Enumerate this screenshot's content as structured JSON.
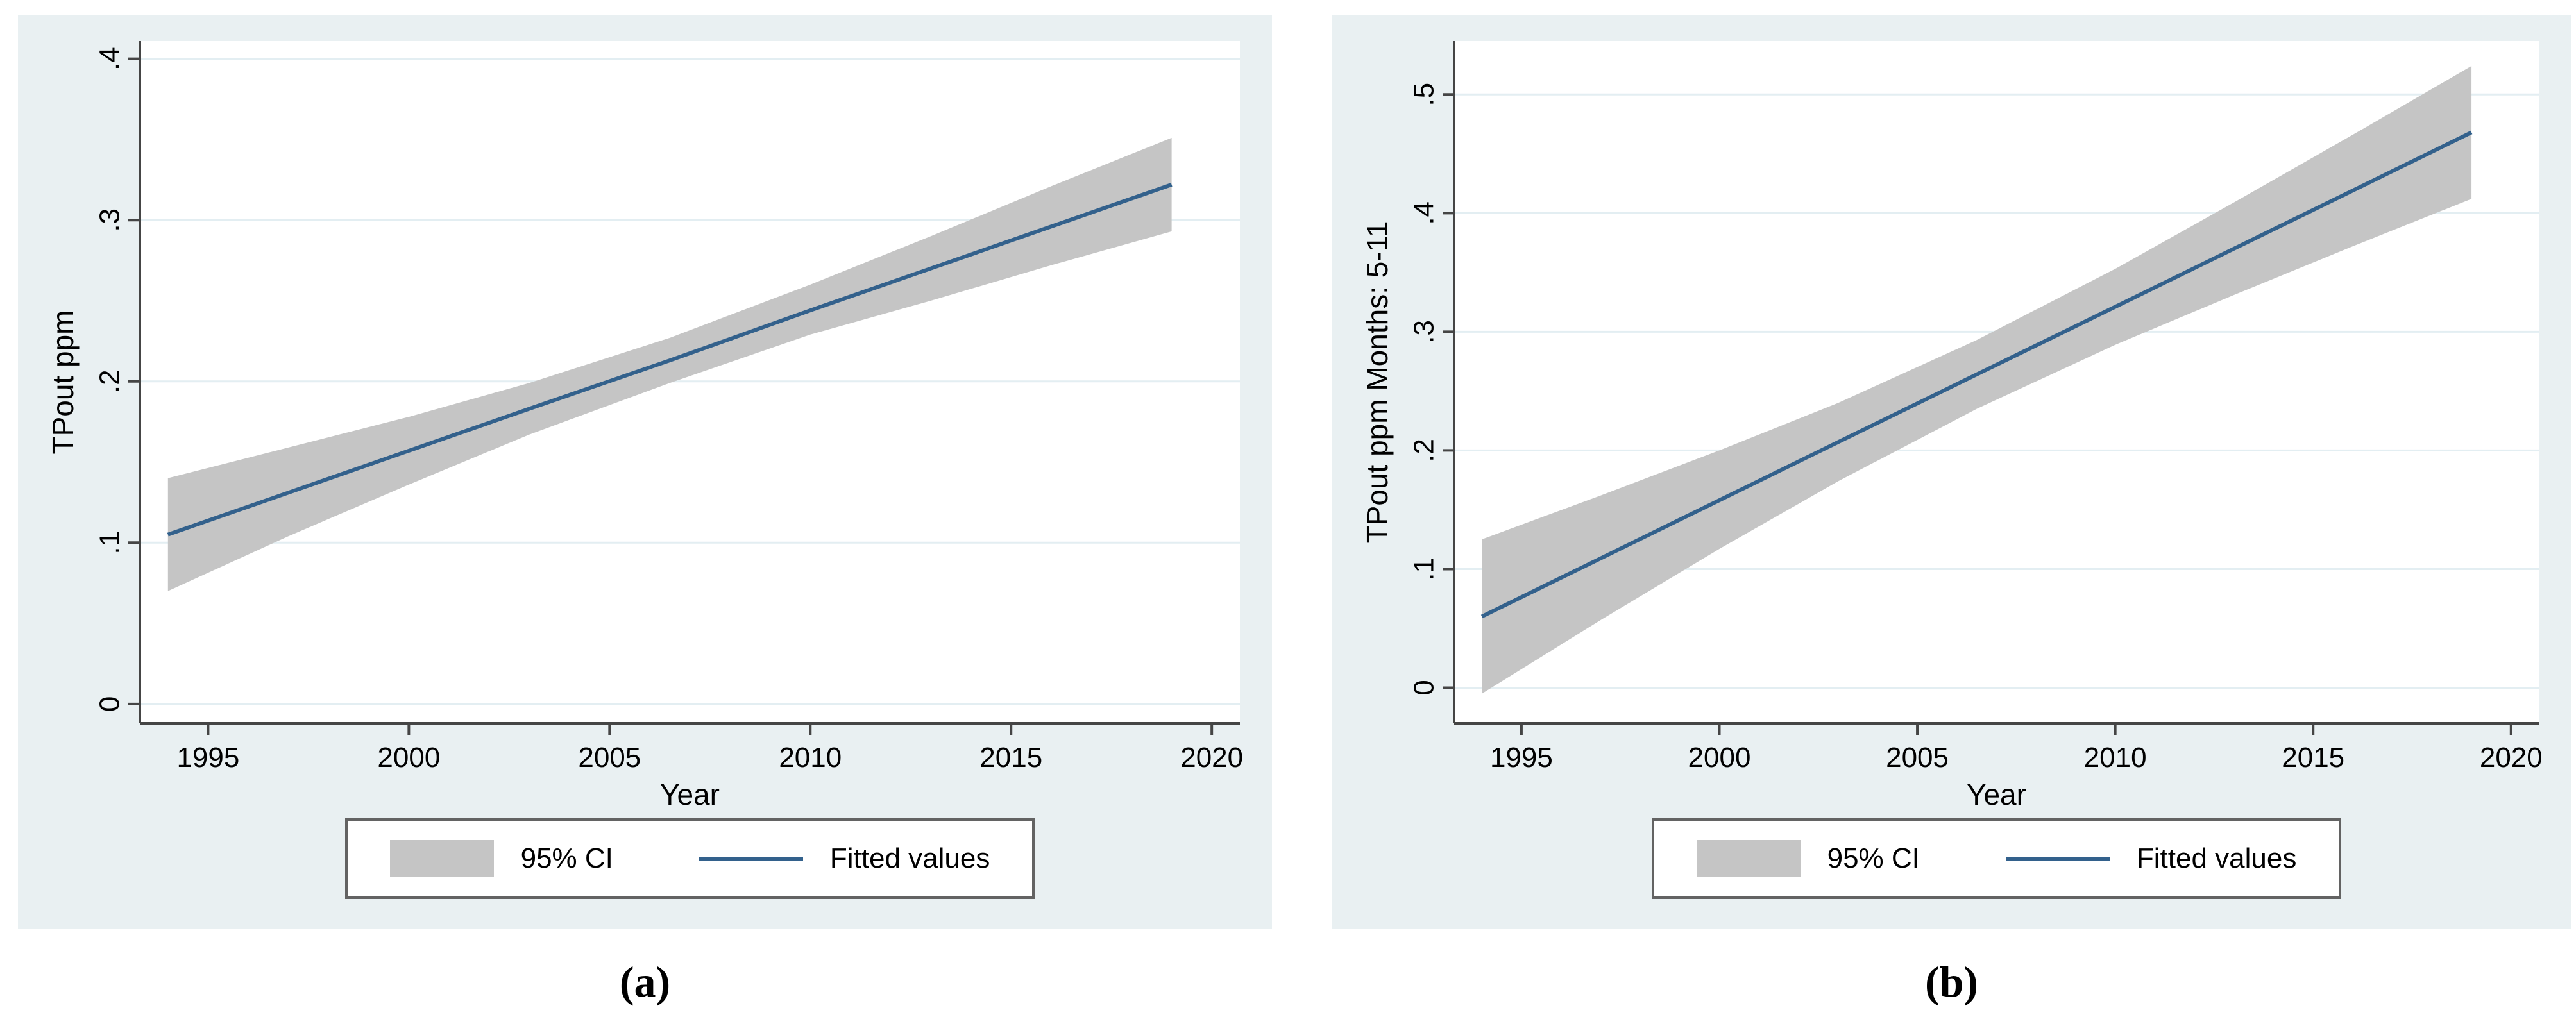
{
  "figure": {
    "captions": [
      {
        "text": "(a)"
      },
      {
        "text": "(b)"
      }
    ]
  },
  "chart_data": [
    {
      "type": "line",
      "title": "",
      "xlabel": "Year",
      "ylabel": "TPout ppm",
      "x_ticks": [
        1995,
        2000,
        2005,
        2010,
        2015,
        2020
      ],
      "y_tick_values": [
        0,
        0.1,
        0.2,
        0.3,
        0.4
      ],
      "y_tick_labels": [
        "0",
        ".1",
        ".2",
        ".3",
        ".4"
      ],
      "xlim": [
        1993.3,
        2020.7
      ],
      "ylim": [
        -0.012,
        0.411
      ],
      "grid": true,
      "legend_position": "bottom-center",
      "x": [
        1994,
        1997,
        2000,
        2003,
        2006.5,
        2010,
        2013,
        2016,
        2019
      ],
      "series": [
        {
          "name": "Fitted values",
          "kind": "line",
          "values": [
            0.105,
            0.131,
            0.157,
            0.183,
            0.213,
            0.244,
            0.27,
            0.296,
            0.322
          ]
        },
        {
          "name": "95% CI",
          "kind": "band",
          "lower": [
            0.07,
            0.104,
            0.136,
            0.167,
            0.199,
            0.229,
            0.25,
            0.272,
            0.293
          ],
          "upper": [
            0.14,
            0.159,
            0.178,
            0.199,
            0.227,
            0.26,
            0.29,
            0.321,
            0.351
          ]
        }
      ],
      "legend": [
        {
          "label": "95% CI",
          "swatch": "band"
        },
        {
          "label": "Fitted values",
          "swatch": "line"
        }
      ]
    },
    {
      "type": "line",
      "title": "",
      "xlabel": "Year",
      "ylabel": "TPout ppm Months: 5-11",
      "x_ticks": [
        1995,
        2000,
        2005,
        2010,
        2015,
        2020
      ],
      "y_tick_values": [
        0,
        0.1,
        0.2,
        0.3,
        0.4,
        0.5
      ],
      "y_tick_labels": [
        "0",
        ".1",
        ".2",
        ".3",
        ".4",
        ".5"
      ],
      "xlim": [
        1993.3,
        2020.7
      ],
      "ylim": [
        -0.03,
        0.545
      ],
      "grid": true,
      "legend_position": "bottom-center",
      "x": [
        1994,
        1997,
        2000,
        2003,
        2006.5,
        2010,
        2013,
        2016,
        2019
      ],
      "series": [
        {
          "name": "Fitted values",
          "kind": "line",
          "values": [
            0.06,
            0.109,
            0.158,
            0.207,
            0.264,
            0.321,
            0.37,
            0.419,
            0.468
          ]
        },
        {
          "name": "95% CI",
          "kind": "band",
          "lower": [
            -0.005,
            0.057,
            0.117,
            0.174,
            0.235,
            0.289,
            0.331,
            0.372,
            0.412
          ],
          "upper": [
            0.125,
            0.162,
            0.2,
            0.24,
            0.293,
            0.353,
            0.409,
            0.466,
            0.524
          ]
        }
      ],
      "legend": [
        {
          "label": "95% CI",
          "swatch": "band"
        },
        {
          "label": "Fitted values",
          "swatch": "line"
        }
      ]
    }
  ],
  "colors": {
    "panel_bg": "#e9f0f2",
    "plot_bg": "#ffffff",
    "grid": "#e3eef2",
    "band": "#c5c5c5",
    "line": "#33618c",
    "axis": "#454545",
    "text": "#000000",
    "legend_border": "#636363"
  }
}
